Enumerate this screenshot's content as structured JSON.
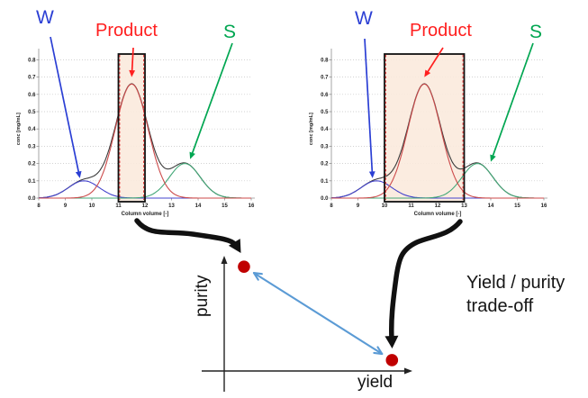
{
  "page": {
    "background": "#ffffff"
  },
  "labels": {
    "w": "W",
    "product": "Product",
    "s": "S"
  },
  "caption": {
    "line1": "Yield / purity",
    "line2": "trade-off"
  },
  "mini_plot": {
    "x_axis_label": "yield",
    "y_axis_label": "purity",
    "point_color": "#c00000",
    "tradeoff_arrow_color": "#5b9bd5",
    "axis_color": "#222222"
  },
  "colors": {
    "w_label": "#2b3fd4",
    "product_label": "#ff1f1f",
    "s_label": "#00a651",
    "w_curve": "#4444cc",
    "product_curve": "#cc4a4a",
    "s_curve": "#44a878",
    "total_curve": "#3a3a3a",
    "cut_fill": "#fbeadd",
    "cut_border": "#111111",
    "cut_dash": "#e03030",
    "big_arrow": "#111111"
  },
  "chart_data": [
    {
      "type": "line",
      "name": "chromatogram-narrow-cut",
      "xlabel": "Column volume [-]",
      "ylabel": "conc [mg/mL]",
      "x_range": [
        8,
        16
      ],
      "y_range": [
        0,
        0.8
      ],
      "x_ticks": [
        8,
        9,
        10,
        11,
        12,
        13,
        14,
        15,
        16
      ],
      "y_ticks": [
        0.0,
        0.1,
        0.2,
        0.3,
        0.4,
        0.5,
        0.6,
        0.7,
        0.8
      ],
      "grid": true,
      "series": [
        {
          "name": "W",
          "shape": "gaussian",
          "center": 9.7,
          "sigma": 0.58,
          "height": 0.1
        },
        {
          "name": "Product",
          "shape": "gaussian",
          "center": 11.5,
          "sigma": 0.62,
          "height": 0.66
        },
        {
          "name": "S",
          "shape": "gaussian",
          "center": 13.5,
          "sigma": 0.58,
          "height": 0.2
        },
        {
          "name": "Total",
          "shape": "sum"
        }
      ],
      "cut_window": {
        "start": 11,
        "end": 12
      },
      "annotations": [
        {
          "label": "W",
          "target_cv": 9.55,
          "target_conc": 0.115
        },
        {
          "label": "Product",
          "target_cv": 11.5,
          "target_conc": 0.7
        },
        {
          "label": "S",
          "target_cv": 13.7,
          "target_conc": 0.225
        }
      ]
    },
    {
      "type": "line",
      "name": "chromatogram-wide-cut",
      "xlabel": "Column volume [-]",
      "ylabel": "conc [mg/mL]",
      "x_range": [
        8,
        16
      ],
      "y_range": [
        0,
        0.8
      ],
      "x_ticks": [
        8,
        9,
        10,
        11,
        12,
        13,
        14,
        15,
        16
      ],
      "y_ticks": [
        0.0,
        0.1,
        0.2,
        0.3,
        0.4,
        0.5,
        0.6,
        0.7,
        0.8
      ],
      "grid": true,
      "series": [
        {
          "name": "W",
          "shape": "gaussian",
          "center": 9.7,
          "sigma": 0.58,
          "height": 0.1
        },
        {
          "name": "Product",
          "shape": "gaussian",
          "center": 11.5,
          "sigma": 0.62,
          "height": 0.66
        },
        {
          "name": "S",
          "shape": "gaussian",
          "center": 13.5,
          "sigma": 0.58,
          "height": 0.2
        },
        {
          "name": "Total",
          "shape": "sum"
        }
      ],
      "cut_window": {
        "start": 10,
        "end": 13
      },
      "annotations": [
        {
          "label": "W",
          "target_cv": 9.55,
          "target_conc": 0.115
        },
        {
          "label": "Product",
          "target_cv": 11.5,
          "target_conc": 0.7
        },
        {
          "label": "S",
          "target_cv": 14.0,
          "target_conc": 0.21
        }
      ]
    },
    {
      "type": "scatter",
      "name": "yield-purity-tradeoff",
      "xlabel": "yield",
      "ylabel": "purity",
      "axes_qualitative": true,
      "points": [
        {
          "name": "narrow-cut-result",
          "x_rel": 0.106,
          "y_rel": 0.905,
          "color": "#c00000"
        },
        {
          "name": "wide-cut-result",
          "x_rel": 0.9,
          "y_rel": 0.094,
          "color": "#c00000"
        }
      ],
      "note": "Yield / purity trade-off"
    }
  ]
}
